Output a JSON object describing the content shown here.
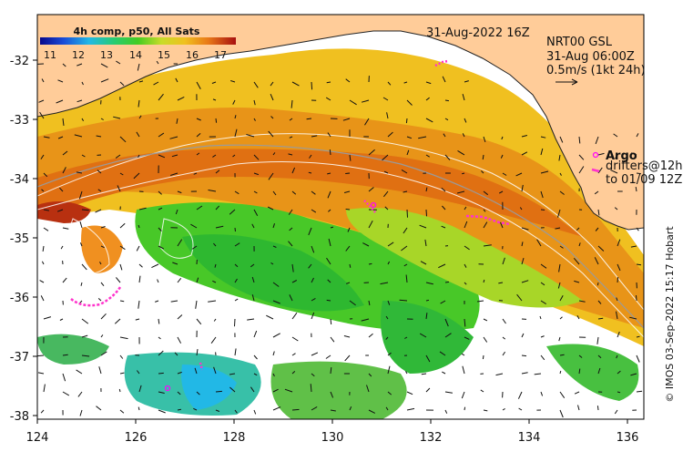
{
  "colorbar": {
    "title": "4h comp, p50, All Sats",
    "ticks": [
      "11",
      "12",
      "13",
      "14",
      "15",
      "16",
      "17"
    ]
  },
  "map_date": "31-Aug-2022 16Z",
  "current_info": {
    "line1": "NRT00 GSL",
    "line2": "31-Aug 06:00Z",
    "line3": "0.5m/s (1kt 24h)"
  },
  "legend": {
    "argo": "Argo",
    "drifters_line1": "drifters@12h",
    "drifters_line2": "to 01/09 12Z"
  },
  "axes": {
    "y_ticks": [
      "-32",
      "-33",
      "-34",
      "-35",
      "-36",
      "-37",
      "-38"
    ],
    "x_ticks": [
      "124",
      "126",
      "128",
      "130",
      "132",
      "134",
      "136"
    ]
  },
  "credit": "© IMOS 03-Sep-2022 15:17 Hobart",
  "colors": {
    "land": "#ffcc99",
    "argo_marker": "#ff00ff",
    "drifter": "#ff33cc"
  }
}
